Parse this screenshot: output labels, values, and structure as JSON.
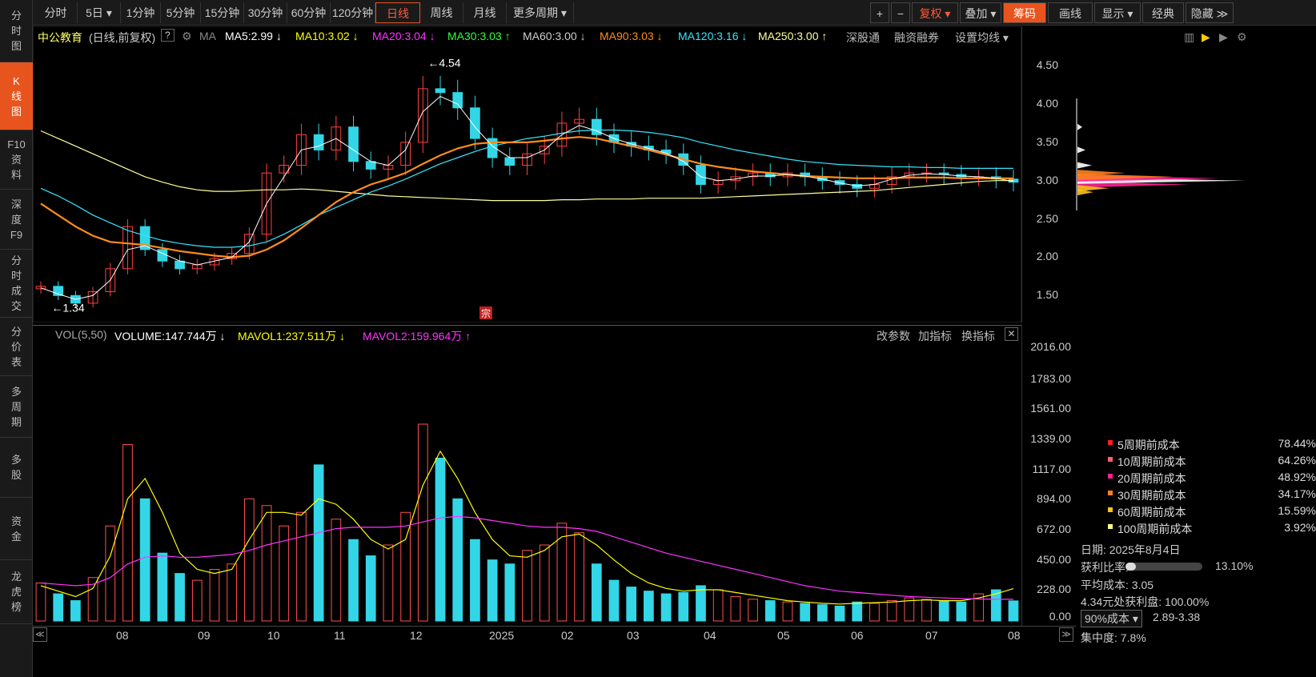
{
  "sidebar": {
    "items": [
      {
        "label": "分\n时\n图",
        "active": false
      },
      {
        "label": "K\n线\n图",
        "active": true
      },
      {
        "label": "F10\n资\n料",
        "active": false
      },
      {
        "label": "深\n度\nF9",
        "active": false
      },
      {
        "label": "分\n时\n成\n交",
        "active": false
      },
      {
        "label": "分\n价\n表",
        "active": false
      },
      {
        "label": "多\n周\n期",
        "active": false
      },
      {
        "label": "多\n股",
        "active": false
      },
      {
        "label": "资\n金",
        "active": false
      },
      {
        "label": "龙\n虎\n榜",
        "active": false
      }
    ]
  },
  "toolbar": {
    "periods": [
      "分时",
      "5日 ▾",
      "1分钟",
      "5分钟",
      "15分钟",
      "30分钟",
      "60分钟",
      "120分钟",
      "日线",
      "周线",
      "月线",
      "更多周期 ▾"
    ],
    "active_period": "日线",
    "right_buttons": [
      "+",
      "−",
      "复权 ▾",
      "叠加 ▾",
      "筹码",
      "画线",
      "显示 ▾",
      "经典",
      "隐藏 ≫"
    ]
  },
  "stock": {
    "name": "中公教育",
    "mode": "(日线,前复权)",
    "help": "?",
    "ma_label": "MA",
    "ma_items": [
      {
        "text": "MA5:2.99 ↓",
        "color": "#ffffff"
      },
      {
        "text": "MA10:3.02 ↓",
        "color": "#ffff00"
      },
      {
        "text": "MA20:3.04 ↓",
        "color": "#ff33ff"
      },
      {
        "text": "MA30:3.03 ↑",
        "color": "#33ff33"
      },
      {
        "text": "MA60:3.00 ↓",
        "color": "#cccccc"
      },
      {
        "text": "MA90:3.03 ↓",
        "color": "#ff8c1a"
      },
      {
        "text": "MA120:3.16 ↓",
        "color": "#33e6ff"
      },
      {
        "text": "MA250:3.00 ↑",
        "color": "#ffff99"
      }
    ],
    "extra_links": [
      "深股通",
      "融资融券",
      "设置均线 ▾"
    ],
    "high_label": "4.54",
    "low_label": "1.34",
    "zong": "宗"
  },
  "price_axis": [
    "4.50",
    "4.00",
    "3.50",
    "3.00",
    "2.50",
    "2.00",
    "1.50"
  ],
  "volume": {
    "label": "VOL(5,50)",
    "volume_text": "VOLUME:147.744万 ↓",
    "mavol1_text": "MAVOL1:237.511万 ↓",
    "mavol2_text": "MAVOL2:159.964万 ↑",
    "links": [
      "改参数",
      "加指标",
      "换指标"
    ],
    "close": "✕",
    "axis": [
      "2016.00",
      "1783.00",
      "1561.00",
      "1339.00",
      "1117.00",
      "894.00",
      "672.00",
      "450.00",
      "228.00",
      "0.00"
    ]
  },
  "date_axis": [
    "08",
    "09",
    "10",
    "11",
    "12",
    "2025",
    "02",
    "03",
    "04",
    "05",
    "06",
    "07",
    "08"
  ],
  "chip": {
    "legend": [
      {
        "label": "5周期前成本",
        "value": "78.44%",
        "color": "#ff2020"
      },
      {
        "label": "10周期前成本",
        "value": "64.26%",
        "color": "#ff6060"
      },
      {
        "label": "20周期前成本",
        "value": "48.92%",
        "color": "#ff2090"
      },
      {
        "label": "30周期前成本",
        "value": "34.17%",
        "color": "#ff8020"
      },
      {
        "label": "60周期前成本",
        "value": "15.59%",
        "color": "#ffc020"
      },
      {
        "label": "100周期前成本",
        "value": "3.92%",
        "color": "#ffff80"
      }
    ],
    "date_text": "日期: 2025年8月4日",
    "profit_label": "获利比率:",
    "profit_value": "13.10%",
    "profit_fraction": 0.131,
    "avg_cost": "平均成本: 3.05",
    "price_profit": "4.34元处获利盘: 100.00%",
    "cost_select": "90%成本 ▾",
    "cost_range": "2.89-3.38",
    "concentration": "集中度: 7.8%"
  },
  "chart_data": {
    "type": "candlestick",
    "ylim": [
      1.2,
      4.7
    ],
    "vol_ylim": [
      0,
      2016
    ],
    "x": [
      "07-01",
      "07-08",
      "07-15",
      "07-22",
      "07-29",
      "08-05",
      "08-12",
      "08-19",
      "08-26",
      "09-02",
      "09-09",
      "09-16",
      "09-23",
      "09-30",
      "10-08",
      "10-14",
      "10-21",
      "10-28",
      "11-04",
      "11-11",
      "11-18",
      "11-25",
      "12-02",
      "12-09",
      "12-16",
      "12-23",
      "12-30",
      "01-06",
      "01-13",
      "01-20",
      "02-05",
      "02-12",
      "02-19",
      "02-26",
      "03-05",
      "03-12",
      "03-19",
      "03-26",
      "04-02",
      "04-09",
      "04-16",
      "04-23",
      "04-30",
      "05-08",
      "05-15",
      "05-22",
      "05-29",
      "06-05",
      "06-12",
      "06-19",
      "06-26",
      "07-03",
      "07-10",
      "07-17",
      "07-24",
      "07-31",
      "08-04"
    ],
    "close": [
      1.62,
      1.5,
      1.4,
      1.55,
      1.85,
      2.4,
      2.1,
      1.95,
      1.85,
      1.9,
      1.98,
      2.05,
      2.3,
      3.1,
      3.2,
      3.6,
      3.4,
      3.7,
      3.25,
      3.15,
      3.2,
      3.5,
      4.2,
      4.15,
      3.95,
      3.55,
      3.3,
      3.2,
      3.35,
      3.45,
      3.75,
      3.8,
      3.6,
      3.5,
      3.45,
      3.4,
      3.35,
      3.2,
      2.95,
      3.0,
      3.05,
      3.1,
      3.05,
      3.1,
      3.05,
      3.0,
      2.95,
      2.9,
      2.95,
      3.05,
      3.1,
      3.1,
      3.08,
      3.05,
      3.05,
      3.02,
      2.98
    ],
    "volume": [
      280,
      200,
      150,
      320,
      700,
      1300,
      900,
      500,
      350,
      300,
      380,
      420,
      900,
      850,
      700,
      800,
      1150,
      750,
      600,
      480,
      560,
      800,
      1450,
      1200,
      900,
      600,
      450,
      420,
      520,
      560,
      720,
      650,
      420,
      300,
      250,
      220,
      200,
      210,
      260,
      230,
      180,
      160,
      150,
      140,
      130,
      120,
      110,
      140,
      130,
      150,
      170,
      160,
      150,
      140,
      200,
      230,
      148
    ],
    "ma5": [
      1.6,
      1.52,
      1.45,
      1.5,
      1.7,
      2.1,
      2.15,
      2.05,
      1.95,
      1.9,
      1.95,
      2.0,
      2.2,
      2.7,
      3.05,
      3.4,
      3.45,
      3.55,
      3.4,
      3.25,
      3.2,
      3.4,
      3.9,
      4.1,
      4.0,
      3.7,
      3.45,
      3.3,
      3.3,
      3.4,
      3.6,
      3.72,
      3.65,
      3.55,
      3.48,
      3.42,
      3.36,
      3.25,
      3.05,
      3.0,
      3.02,
      3.06,
      3.06,
      3.08,
      3.06,
      3.02,
      2.97,
      2.93,
      2.95,
      3.02,
      3.07,
      3.09,
      3.08,
      3.06,
      3.05,
      3.03,
      2.99
    ],
    "ma250": [
      3.65,
      3.55,
      3.45,
      3.35,
      3.25,
      3.15,
      3.05,
      2.98,
      2.92,
      2.88,
      2.86,
      2.86,
      2.87,
      2.88,
      2.88,
      2.89,
      2.88,
      2.86,
      2.84,
      2.82,
      2.8,
      2.79,
      2.78,
      2.77,
      2.76,
      2.75,
      2.74,
      2.74,
      2.74,
      2.74,
      2.75,
      2.75,
      2.76,
      2.76,
      2.76,
      2.77,
      2.77,
      2.77,
      2.77,
      2.78,
      2.79,
      2.8,
      2.81,
      2.82,
      2.83,
      2.84,
      2.85,
      2.86,
      2.87,
      2.89,
      2.91,
      2.93,
      2.95,
      2.97,
      2.99,
      3.0,
      3.0
    ],
    "ma120": [
      2.9,
      2.8,
      2.68,
      2.55,
      2.45,
      2.35,
      2.28,
      2.22,
      2.18,
      2.15,
      2.13,
      2.13,
      2.15,
      2.2,
      2.3,
      2.42,
      2.55,
      2.65,
      2.75,
      2.85,
      2.93,
      3.02,
      3.12,
      3.22,
      3.3,
      3.38,
      3.45,
      3.5,
      3.55,
      3.58,
      3.62,
      3.65,
      3.66,
      3.66,
      3.65,
      3.63,
      3.6,
      3.56,
      3.5,
      3.45,
      3.4,
      3.36,
      3.32,
      3.28,
      3.25,
      3.23,
      3.21,
      3.2,
      3.19,
      3.18,
      3.18,
      3.17,
      3.17,
      3.16,
      3.16,
      3.16,
      3.16
    ],
    "ma90": [
      2.7,
      2.55,
      2.4,
      2.28,
      2.2,
      2.18,
      2.16,
      2.12,
      2.08,
      2.05,
      2.02,
      2.0,
      2.02,
      2.1,
      2.22,
      2.38,
      2.55,
      2.72,
      2.85,
      2.95,
      3.02,
      3.1,
      3.22,
      3.33,
      3.42,
      3.48,
      3.5,
      3.5,
      3.5,
      3.52,
      3.55,
      3.57,
      3.55,
      3.5,
      3.45,
      3.4,
      3.34,
      3.28,
      3.22,
      3.18,
      3.15,
      3.12,
      3.1,
      3.08,
      3.06,
      3.05,
      3.04,
      3.03,
      3.03,
      3.03,
      3.04,
      3.04,
      3.04,
      3.03,
      3.03,
      3.03,
      3.03
    ],
    "mavol1": [
      260,
      220,
      180,
      240,
      480,
      900,
      1050,
      800,
      500,
      380,
      350,
      380,
      600,
      800,
      800,
      780,
      900,
      860,
      750,
      600,
      530,
      600,
      1000,
      1250,
      1050,
      800,
      600,
      480,
      470,
      520,
      620,
      640,
      560,
      450,
      350,
      280,
      240,
      220,
      230,
      230,
      210,
      190,
      170,
      150,
      140,
      130,
      125,
      130,
      135,
      140,
      150,
      155,
      150,
      150,
      170,
      200,
      238
    ],
    "mavol2": [
      280,
      270,
      260,
      270,
      320,
      420,
      470,
      480,
      470,
      470,
      480,
      490,
      520,
      560,
      590,
      620,
      650,
      680,
      690,
      690,
      690,
      700,
      730,
      760,
      770,
      760,
      740,
      720,
      700,
      690,
      690,
      680,
      660,
      620,
      580,
      540,
      500,
      470,
      440,
      410,
      380,
      350,
      320,
      290,
      260,
      240,
      220,
      210,
      200,
      190,
      180,
      175,
      170,
      165,
      162,
      160,
      160
    ]
  }
}
